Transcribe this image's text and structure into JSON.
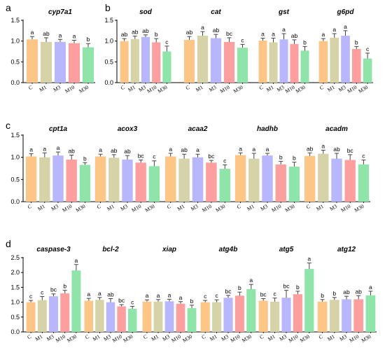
{
  "colors": {
    "C": "#FDC687",
    "M1": "#D7D3A9",
    "M3": "#B8B6FC",
    "M10": "#FE9F9F",
    "M30": "#8FE4AA",
    "error_bar": "#444444",
    "axis": "#000000"
  },
  "chart_data": [
    {
      "type": "bar",
      "panel": "a",
      "ylim": [
        0,
        1.5
      ],
      "yticks": [
        "0.0",
        "0.5",
        "1.0",
        "1.5"
      ],
      "groups": [
        {
          "title": "cyp7a1",
          "categories": [
            "C",
            "M1",
            "M3",
            "M10",
            "M30"
          ],
          "values": [
            1.04,
            0.98,
            0.98,
            0.95,
            0.85
          ],
          "errors": [
            0.07,
            0.1,
            0.06,
            0.07,
            0.09
          ],
          "letters": [
            "a",
            "ab",
            "a",
            "a",
            "b"
          ]
        }
      ]
    },
    {
      "type": "bar",
      "panel": "b",
      "ylim": [
        0,
        1.5
      ],
      "yticks": [
        "0.0",
        "0.5",
        "1.0",
        "1.5"
      ],
      "groups": [
        {
          "title": "sod",
          "categories": [
            "C",
            "M1",
            "M3",
            "M10",
            "M30"
          ],
          "values": [
            1.0,
            1.05,
            1.1,
            0.97,
            0.75
          ],
          "errors": [
            0.06,
            0.07,
            0.05,
            0.09,
            0.13
          ],
          "letters": [
            "ab",
            "ab",
            "ab",
            "b",
            "c"
          ]
        },
        {
          "title": "cat",
          "categories": [
            "C",
            "M1",
            "M3",
            "M10",
            "M30"
          ],
          "values": [
            1.03,
            1.13,
            1.07,
            0.98,
            0.84
          ],
          "errors": [
            0.08,
            0.1,
            0.09,
            0.1,
            0.08
          ],
          "letters": [
            "ab",
            "a",
            "ab",
            "bc",
            "c"
          ]
        },
        {
          "title": "gst",
          "categories": [
            "C",
            "M1",
            "M3",
            "M10",
            "M30"
          ],
          "values": [
            1.01,
            0.97,
            1.04,
            0.93,
            0.77
          ],
          "errors": [
            0.06,
            0.1,
            0.14,
            0.1,
            0.1
          ],
          "letters": [
            "a",
            "a",
            "a",
            "ab",
            "b"
          ]
        },
        {
          "title": "g6pd",
          "categories": [
            "C",
            "M1",
            "M3",
            "M10",
            "M30"
          ],
          "values": [
            1.0,
            1.08,
            1.13,
            0.81,
            0.58
          ],
          "errors": [
            0.06,
            0.1,
            0.12,
            0.06,
            0.13
          ],
          "letters": [
            "a",
            "a",
            "a",
            "b",
            "c"
          ]
        }
      ]
    },
    {
      "type": "bar",
      "panel": "c",
      "ylim": [
        0,
        1.5
      ],
      "yticks": [
        "0.0",
        "0.5",
        "1.0",
        "1.5"
      ],
      "groups": [
        {
          "title": "cpt1a",
          "categories": [
            "C",
            "M1",
            "M3",
            "M10",
            "M30"
          ],
          "values": [
            1.02,
            1.0,
            1.04,
            0.95,
            0.83
          ],
          "errors": [
            0.06,
            0.1,
            0.08,
            0.1,
            0.05
          ],
          "letters": [
            "a",
            "a",
            "a",
            "ab",
            "b"
          ]
        },
        {
          "title": "acox3",
          "categories": [
            "C",
            "M1",
            "M3",
            "M10",
            "M30"
          ],
          "values": [
            1.02,
            0.99,
            0.95,
            0.88,
            0.8
          ],
          "errors": [
            0.05,
            0.07,
            0.09,
            0.06,
            0.12
          ],
          "letters": [
            "a",
            "ab",
            "ab",
            "bc",
            "c"
          ]
        },
        {
          "title": "acaa2",
          "categories": [
            "C",
            "M1",
            "M3",
            "M10",
            "M30"
          ],
          "values": [
            1.02,
            0.97,
            1.0,
            0.88,
            0.74
          ],
          "errors": [
            0.07,
            0.1,
            0.07,
            0.05,
            0.09
          ],
          "letters": [
            "a",
            "ab",
            "a",
            "bc",
            "c"
          ]
        },
        {
          "title": "hadhb",
          "categories": [
            "C",
            "M1",
            "M3",
            "M10",
            "M30"
          ],
          "values": [
            1.05,
            0.97,
            1.04,
            0.84,
            0.79
          ],
          "errors": [
            0.05,
            0.12,
            0.05,
            0.07,
            0.1
          ],
          "letters": [
            "a",
            "a",
            "a",
            "b",
            "b"
          ]
        },
        {
          "title": "acadm",
          "categories": [
            "C",
            "M1",
            "M3",
            "M10",
            "M30"
          ],
          "values": [
            1.03,
            1.08,
            0.97,
            0.94,
            0.84
          ],
          "errors": [
            0.07,
            0.08,
            0.12,
            0.12,
            0.1
          ],
          "letters": [
            "ab",
            "a",
            "ab",
            "bc",
            "c"
          ]
        }
      ]
    },
    {
      "type": "bar",
      "panel": "d",
      "ylim": [
        0,
        2.5
      ],
      "yticks": [
        "0.0",
        "0.5",
        "1.0",
        "1.5",
        "2.0",
        "2.5"
      ],
      "groups": [
        {
          "title": "caspase-3",
          "categories": [
            "C",
            "M1",
            "M3",
            "M10",
            "M30"
          ],
          "values": [
            1.0,
            1.07,
            1.2,
            1.3,
            2.07
          ],
          "errors": [
            0.06,
            0.12,
            0.08,
            0.1,
            0.2
          ],
          "letters": [
            "c",
            "c",
            "bc",
            "b",
            "a"
          ]
        },
        {
          "title": "bcl-2",
          "categories": [
            "C",
            "M1",
            "M3",
            "M10",
            "M30"
          ],
          "values": [
            1.05,
            1.08,
            1.0,
            0.86,
            0.78
          ],
          "errors": [
            0.08,
            0.08,
            0.12,
            0.06,
            0.08
          ],
          "letters": [
            "a",
            "a",
            "ab",
            "bc",
            "c"
          ]
        },
        {
          "title": "xiap",
          "categories": [
            "C",
            "M1",
            "M3",
            "M10",
            "M30"
          ],
          "values": [
            1.02,
            1.02,
            1.03,
            0.95,
            0.8
          ],
          "errors": [
            0.06,
            0.07,
            0.07,
            0.07,
            0.1
          ],
          "letters": [
            "a",
            "a",
            "a",
            "a",
            "b"
          ]
        },
        {
          "title": "atg4b",
          "categories": [
            "C",
            "M1",
            "M3",
            "M10",
            "M30"
          ],
          "values": [
            1.0,
            1.0,
            1.15,
            1.22,
            1.44
          ],
          "errors": [
            0.06,
            0.08,
            0.08,
            0.12,
            0.16
          ],
          "letters": [
            "c",
            "c",
            "bc",
            "b",
            "a"
          ]
        },
        {
          "title": "atg5",
          "categories": [
            "C",
            "M1",
            "M3",
            "M10",
            "M30"
          ],
          "values": [
            1.05,
            1.02,
            1.15,
            1.27,
            2.12
          ],
          "errors": [
            0.07,
            0.12,
            0.25,
            0.1,
            0.2
          ],
          "letters": [
            "bc",
            "c",
            "bc",
            "b",
            "a"
          ]
        },
        {
          "title": "atg12",
          "categories": [
            "C",
            "M1",
            "M3",
            "M10",
            "M30"
          ],
          "values": [
            1.02,
            1.08,
            1.1,
            1.1,
            1.23
          ],
          "errors": [
            0.07,
            0.08,
            0.1,
            0.12,
            0.14
          ],
          "letters": [
            "b",
            "b",
            "ab",
            "ab",
            "a"
          ]
        }
      ]
    }
  ]
}
